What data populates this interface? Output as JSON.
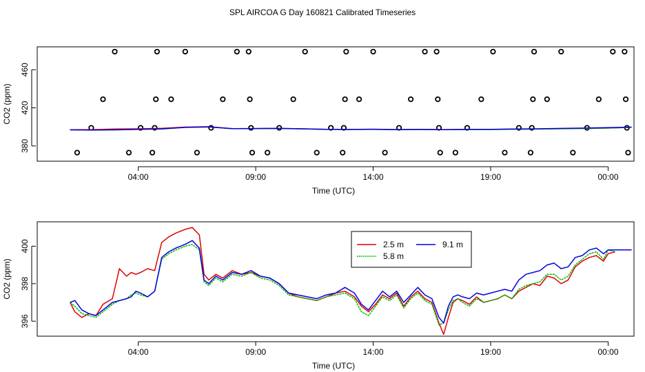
{
  "title": "SPL AIRCOA G  Day 160821  Calibrated Timeseries",
  "colors": {
    "red": "#dd0000",
    "green": "#00bb00",
    "blue": "#0000dd",
    "black": "#000000"
  },
  "chart_data": [
    {
      "type": "scatter+line",
      "xlabel": "Time (UTC)",
      "ylabel": "CO2 (ppm)",
      "xlim": [
        -0.3,
        25.1
      ],
      "ylim": [
        364,
        484
      ],
      "x_ticks": [
        4,
        9,
        14,
        19,
        24
      ],
      "x_tick_labels": [
        "04:00",
        "09:00",
        "14:00",
        "19:00",
        "00:00"
      ],
      "y_ticks": [
        380,
        420,
        460
      ],
      "y_tick_labels": [
        "380",
        "420",
        "460"
      ],
      "calibration_points": [
        {
          "x": 1.4,
          "y": 373
        },
        {
          "x": 2.0,
          "y": 399
        },
        {
          "x": 2.5,
          "y": 429
        },
        {
          "x": 3.0,
          "y": 479
        },
        {
          "x": 3.6,
          "y": 373
        },
        {
          "x": 4.1,
          "y": 399
        },
        {
          "x": 4.6,
          "y": 373
        },
        {
          "x": 4.7,
          "y": 399
        },
        {
          "x": 4.75,
          "y": 429
        },
        {
          "x": 4.8,
          "y": 479
        },
        {
          "x": 5.4,
          "y": 429
        },
        {
          "x": 6.0,
          "y": 479
        },
        {
          "x": 6.5,
          "y": 373
        },
        {
          "x": 7.1,
          "y": 399
        },
        {
          "x": 7.6,
          "y": 429
        },
        {
          "x": 8.2,
          "y": 479
        },
        {
          "x": 8.7,
          "y": 479
        },
        {
          "x": 8.75,
          "y": 429
        },
        {
          "x": 8.8,
          "y": 399
        },
        {
          "x": 8.85,
          "y": 373
        },
        {
          "x": 9.5,
          "y": 373
        },
        {
          "x": 10.0,
          "y": 399
        },
        {
          "x": 10.6,
          "y": 429
        },
        {
          "x": 11.1,
          "y": 479
        },
        {
          "x": 11.6,
          "y": 373
        },
        {
          "x": 12.2,
          "y": 399
        },
        {
          "x": 12.7,
          "y": 373
        },
        {
          "x": 12.75,
          "y": 399
        },
        {
          "x": 12.8,
          "y": 429
        },
        {
          "x": 12.85,
          "y": 479
        },
        {
          "x": 13.4,
          "y": 429
        },
        {
          "x": 14.0,
          "y": 479
        },
        {
          "x": 14.5,
          "y": 373
        },
        {
          "x": 15.1,
          "y": 399
        },
        {
          "x": 15.6,
          "y": 429
        },
        {
          "x": 16.2,
          "y": 479
        },
        {
          "x": 16.7,
          "y": 479
        },
        {
          "x": 16.75,
          "y": 429
        },
        {
          "x": 16.8,
          "y": 399
        },
        {
          "x": 16.85,
          "y": 373
        },
        {
          "x": 17.5,
          "y": 373
        },
        {
          "x": 18.0,
          "y": 399
        },
        {
          "x": 18.6,
          "y": 429
        },
        {
          "x": 19.1,
          "y": 479
        },
        {
          "x": 19.6,
          "y": 373
        },
        {
          "x": 20.2,
          "y": 399
        },
        {
          "x": 20.7,
          "y": 373
        },
        {
          "x": 20.75,
          "y": 399
        },
        {
          "x": 20.8,
          "y": 429
        },
        {
          "x": 20.85,
          "y": 479
        },
        {
          "x": 21.4,
          "y": 429
        },
        {
          "x": 22.0,
          "y": 479
        },
        {
          "x": 22.5,
          "y": 373
        },
        {
          "x": 23.1,
          "y": 399
        },
        {
          "x": 23.6,
          "y": 429
        },
        {
          "x": 24.2,
          "y": 479
        },
        {
          "x": 24.7,
          "y": 479
        },
        {
          "x": 24.75,
          "y": 429
        },
        {
          "x": 24.8,
          "y": 399
        },
        {
          "x": 24.85,
          "y": 373
        }
      ],
      "series": [
        {
          "name": "2.5 m",
          "color": "#dd0000",
          "x": [
            1.1,
            2.0,
            3.0,
            4.0,
            5.0,
            6.0,
            7.0,
            8.0,
            9.0,
            10.0,
            11.0,
            12.0,
            13.0,
            14.0,
            15.0,
            16.0,
            17.0,
            18.0,
            19.0,
            20.0,
            21.0,
            22.0,
            23.0,
            24.0,
            25.0
          ],
          "y": [
            397.0,
            397.1,
            397.8,
            398.0,
            398.5,
            399.8,
            400.2,
            398.2,
            398.3,
            398.4,
            398.0,
            397.5,
            397.3,
            397.6,
            397.2,
            397.4,
            397.2,
            397.4,
            397.3,
            397.6,
            397.8,
            398.1,
            398.4,
            398.8,
            399.6
          ]
        },
        {
          "name": "5.8 m",
          "color": "#00bb00",
          "x": [
            1.1,
            2.0,
            3.0,
            4.0,
            5.0,
            6.0,
            7.0,
            8.0,
            9.0,
            10.0,
            11.0,
            12.0,
            13.0,
            14.0,
            15.0,
            16.0,
            17.0,
            18.0,
            19.0,
            20.0,
            21.0,
            22.0,
            23.0,
            24.0,
            25.0
          ],
          "y": [
            396.9,
            396.6,
            396.8,
            397.3,
            397.8,
            399.4,
            399.9,
            398.1,
            398.2,
            398.3,
            397.9,
            397.4,
            397.2,
            397.4,
            397.0,
            397.2,
            397.0,
            397.2,
            397.2,
            397.5,
            397.7,
            398.0,
            398.3,
            398.7,
            399.6
          ]
        },
        {
          "name": "9.1 m",
          "color": "#0000dd",
          "x": [
            1.1,
            2.0,
            3.0,
            4.0,
            5.0,
            6.0,
            7.0,
            8.0,
            9.0,
            10.0,
            11.0,
            12.0,
            13.0,
            14.0,
            15.0,
            16.0,
            17.0,
            18.0,
            19.0,
            20.0,
            21.0,
            22.0,
            23.0,
            24.0,
            25.0
          ],
          "y": [
            396.9,
            396.7,
            396.9,
            397.4,
            397.9,
            399.5,
            400.0,
            398.2,
            398.3,
            398.4,
            398.0,
            397.5,
            397.3,
            397.5,
            397.2,
            397.3,
            397.1,
            397.3,
            397.4,
            397.8,
            398.0,
            398.4,
            398.8,
            399.2,
            399.8
          ]
        }
      ]
    },
    {
      "type": "line",
      "xlabel": "Time (UTC)",
      "ylabel": "CO2 (ppm)",
      "xlim": [
        -0.3,
        25.1
      ],
      "ylim": [
        395.2,
        401.3
      ],
      "x_ticks": [
        4,
        9,
        14,
        19,
        24
      ],
      "x_tick_labels": [
        "04:00",
        "09:00",
        "14:00",
        "19:00",
        "00:00"
      ],
      "y_ticks": [
        396,
        398,
        400
      ],
      "y_tick_labels": [
        "396",
        "398",
        "400"
      ],
      "legend": {
        "position": "top-center",
        "entries": [
          {
            "label": "2.5 m",
            "color": "#dd0000"
          },
          {
            "label": "9.1 m",
            "color": "#0000dd"
          },
          {
            "label": "5.8 m",
            "color": "#00bb00"
          }
        ]
      },
      "series": [
        {
          "name": "2.5 m",
          "color": "#dd0000",
          "x": [
            1.1,
            1.3,
            1.6,
            1.9,
            2.2,
            2.5,
            2.9,
            3.2,
            3.5,
            3.7,
            3.9,
            4.1,
            4.4,
            4.7,
            5.0,
            5.3,
            5.6,
            6.0,
            6.3,
            6.6,
            6.8,
            7.0,
            7.3,
            7.6,
            8.0,
            8.4,
            8.8,
            9.2,
            9.6,
            10.0,
            10.4,
            10.8,
            11.2,
            11.6,
            12.0,
            12.4,
            12.8,
            13.2,
            13.5,
            13.8,
            14.1,
            14.4,
            14.7,
            15.0,
            15.3,
            15.6,
            15.9,
            16.2,
            16.5,
            16.8,
            17.0,
            17.2,
            17.4,
            17.6,
            17.8,
            18.1,
            18.4,
            18.7,
            19.0,
            19.3,
            19.6,
            19.9,
            20.2,
            20.5,
            20.8,
            21.1,
            21.4,
            21.7,
            22.0,
            22.3,
            22.6,
            22.9,
            23.2,
            23.5,
            23.8,
            24.0,
            24.3
          ],
          "y": [
            397.0,
            396.5,
            396.2,
            396.4,
            396.3,
            396.9,
            397.2,
            398.8,
            398.4,
            398.6,
            398.5,
            398.6,
            398.8,
            398.7,
            400.2,
            400.5,
            400.7,
            400.9,
            401.0,
            400.6,
            398.5,
            398.2,
            398.5,
            398.3,
            398.7,
            398.5,
            398.6,
            398.4,
            398.3,
            398.0,
            397.5,
            397.3,
            397.2,
            397.1,
            397.3,
            397.5,
            397.6,
            397.3,
            396.8,
            396.5,
            396.9,
            397.4,
            397.2,
            397.5,
            396.8,
            397.3,
            397.6,
            397.2,
            397.0,
            395.9,
            395.3,
            396.2,
            397.0,
            397.2,
            397.1,
            396.9,
            397.3,
            397.0,
            397.1,
            397.2,
            397.4,
            397.2,
            397.6,
            397.8,
            398.0,
            397.9,
            398.4,
            398.3,
            398.0,
            398.2,
            398.9,
            399.2,
            399.4,
            399.5,
            399.2,
            399.6,
            399.7
          ]
        },
        {
          "name": "5.8 m",
          "color": "#00bb00",
          "x": [
            1.1,
            1.3,
            1.6,
            1.9,
            2.2,
            2.5,
            2.9,
            3.2,
            3.5,
            3.7,
            3.9,
            4.1,
            4.4,
            4.7,
            5.0,
            5.3,
            5.6,
            6.0,
            6.3,
            6.6,
            6.8,
            7.0,
            7.3,
            7.6,
            8.0,
            8.4,
            8.8,
            9.2,
            9.6,
            10.0,
            10.4,
            10.8,
            11.2,
            11.6,
            12.0,
            12.4,
            12.8,
            13.2,
            13.5,
            13.8,
            14.1,
            14.4,
            14.7,
            15.0,
            15.3,
            15.6,
            15.9,
            16.2,
            16.5,
            16.8,
            17.0,
            17.2,
            17.4,
            17.6,
            17.8,
            18.1,
            18.4,
            18.7,
            19.0,
            19.3,
            19.6,
            19.9,
            20.2,
            20.5,
            20.8,
            21.1,
            21.4,
            21.7,
            22.0,
            22.3,
            22.6,
            22.9,
            23.2,
            23.5,
            23.8,
            24.0,
            24.3
          ],
          "y": [
            397.0,
            396.8,
            396.4,
            396.3,
            396.2,
            396.5,
            396.9,
            397.1,
            397.2,
            397.4,
            397.5,
            397.4,
            397.3,
            397.6,
            399.3,
            399.6,
            399.8,
            400.0,
            400.1,
            399.8,
            398.1,
            397.9,
            398.3,
            398.1,
            398.5,
            398.4,
            398.6,
            398.3,
            398.2,
            397.9,
            397.4,
            397.3,
            397.2,
            397.1,
            397.3,
            397.4,
            397.5,
            397.2,
            396.5,
            396.3,
            396.8,
            397.3,
            397.1,
            397.4,
            396.7,
            397.2,
            397.5,
            397.1,
            396.9,
            395.8,
            395.9,
            396.6,
            397.1,
            397.2,
            397.0,
            396.8,
            397.2,
            397.0,
            397.1,
            397.2,
            397.4,
            397.2,
            397.7,
            397.9,
            398.0,
            398.1,
            398.5,
            398.5,
            398.2,
            398.4,
            399.0,
            399.3,
            399.6,
            399.7,
            399.3,
            399.8,
            399.7
          ]
        },
        {
          "name": "9.1 m",
          "color": "#0000dd",
          "x": [
            1.1,
            1.3,
            1.6,
            1.9,
            2.2,
            2.5,
            2.9,
            3.2,
            3.5,
            3.7,
            3.9,
            4.1,
            4.4,
            4.7,
            5.0,
            5.3,
            5.6,
            6.0,
            6.3,
            6.6,
            6.8,
            7.0,
            7.3,
            7.6,
            8.0,
            8.4,
            8.8,
            9.2,
            9.6,
            10.0,
            10.4,
            10.8,
            11.2,
            11.6,
            12.0,
            12.4,
            12.8,
            13.2,
            13.5,
            13.8,
            14.1,
            14.4,
            14.7,
            15.0,
            15.3,
            15.6,
            15.9,
            16.2,
            16.5,
            16.8,
            17.0,
            17.2,
            17.4,
            17.6,
            17.8,
            18.1,
            18.4,
            18.7,
            19.0,
            19.3,
            19.6,
            19.9,
            20.2,
            20.5,
            20.8,
            21.1,
            21.4,
            21.7,
            22.0,
            22.3,
            22.6,
            22.9,
            23.2,
            23.5,
            23.8,
            24.0,
            24.3,
            24.6,
            25.0
          ],
          "y": [
            397.0,
            397.1,
            396.6,
            396.4,
            396.3,
            396.6,
            397.0,
            397.1,
            397.2,
            397.3,
            397.6,
            397.5,
            397.3,
            397.6,
            399.4,
            399.7,
            399.9,
            400.1,
            400.3,
            399.9,
            398.2,
            398.0,
            398.4,
            398.2,
            398.6,
            398.5,
            398.7,
            398.4,
            398.3,
            398.0,
            397.5,
            397.4,
            397.3,
            397.2,
            397.4,
            397.5,
            397.8,
            397.5,
            396.9,
            396.6,
            397.1,
            397.6,
            397.3,
            397.6,
            397.0,
            397.4,
            397.8,
            397.4,
            397.2,
            396.2,
            395.9,
            396.8,
            397.3,
            397.4,
            397.3,
            397.2,
            397.5,
            397.4,
            397.5,
            397.6,
            397.7,
            397.6,
            398.2,
            398.5,
            398.6,
            398.7,
            399.0,
            399.1,
            398.8,
            398.9,
            399.4,
            399.5,
            399.8,
            399.9,
            399.6,
            399.8,
            399.8,
            399.8,
            399.8
          ]
        }
      ]
    }
  ]
}
